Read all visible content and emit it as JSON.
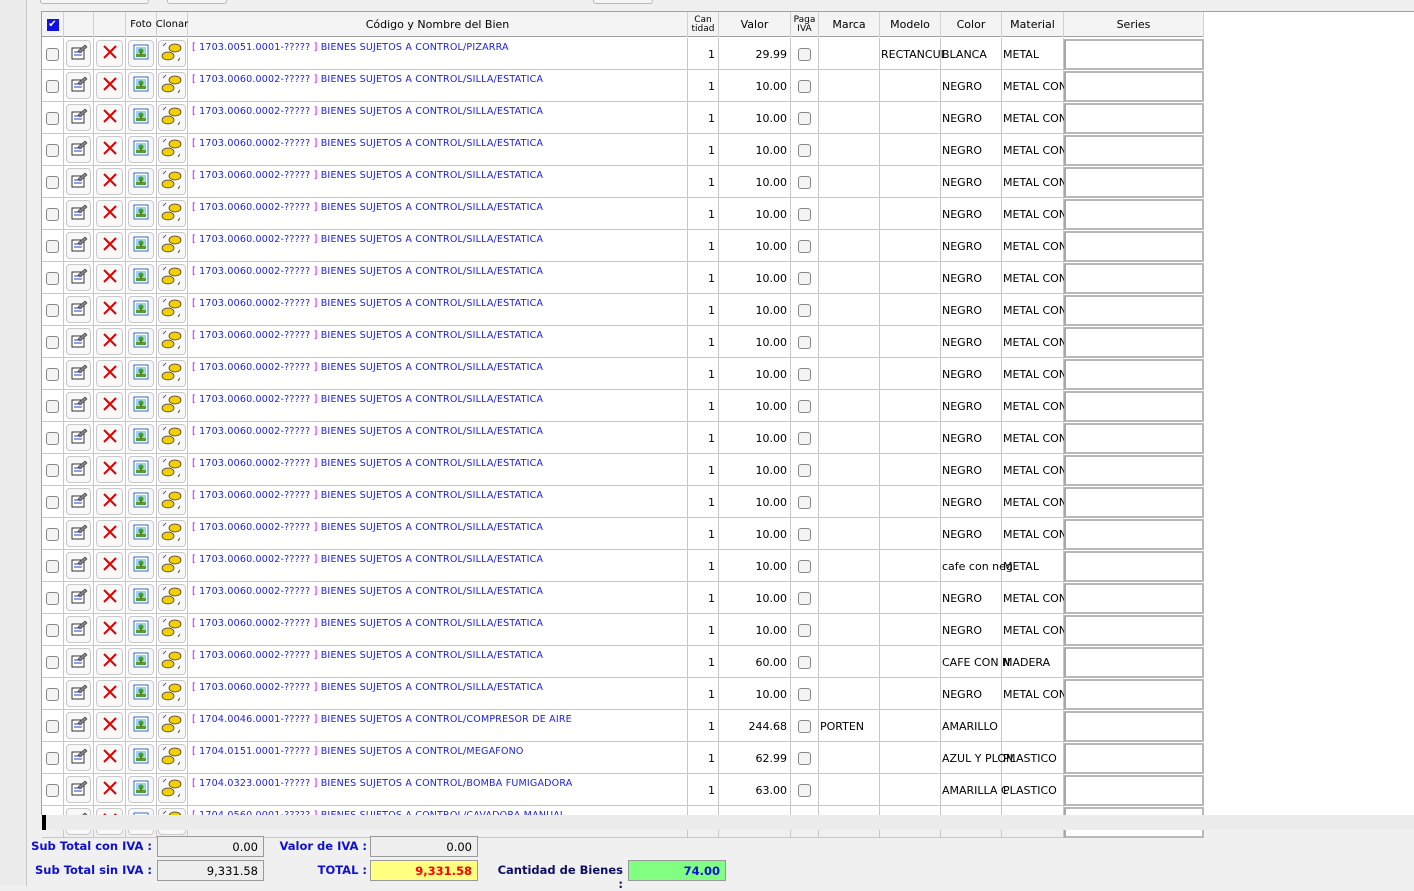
{
  "header": {
    "foto": "Foto",
    "clonar": "Clonar",
    "codigo": "Código y Nombre del Bien",
    "cantidad_1": "Can",
    "cantidad_2": "tidad",
    "valor": "Valor",
    "paga_1": "Paga",
    "paga_2": "IVA",
    "marca": "Marca",
    "modelo": "Modelo",
    "color": "Color",
    "material": "Material",
    "series": "Series"
  },
  "icons": {
    "select_all": "checkbox-checked",
    "edit": "edit-form-icon",
    "delete": "red-x-icon",
    "foto": "picture-icon",
    "clonar": "sheep-clone-icon"
  },
  "rows": [
    {
      "code": "1703.0051.0001-?????",
      "name": "BIENES SUJETOS A CONTROL/PIZARRA",
      "qty": "1",
      "value": "29.99",
      "marca": "",
      "modelo": "RECTANCUL",
      "color": "BLANCA",
      "material": "METAL"
    },
    {
      "code": "1703.0060.0002-?????",
      "name": "BIENES SUJETOS A CONTROL/SILLA/ESTATICA",
      "qty": "1",
      "value": "10.00",
      "marca": "",
      "modelo": "",
      "color": "NEGRO",
      "material": "METAL CON"
    },
    {
      "code": "1703.0060.0002-?????",
      "name": "BIENES SUJETOS A CONTROL/SILLA/ESTATICA",
      "qty": "1",
      "value": "10.00",
      "marca": "",
      "modelo": "",
      "color": "NEGRO",
      "material": "METAL CON"
    },
    {
      "code": "1703.0060.0002-?????",
      "name": "BIENES SUJETOS A CONTROL/SILLA/ESTATICA",
      "qty": "1",
      "value": "10.00",
      "marca": "",
      "modelo": "",
      "color": "NEGRO",
      "material": "METAL CON"
    },
    {
      "code": "1703.0060.0002-?????",
      "name": "BIENES SUJETOS A CONTROL/SILLA/ESTATICA",
      "qty": "1",
      "value": "10.00",
      "marca": "",
      "modelo": "",
      "color": "NEGRO",
      "material": "METAL CON"
    },
    {
      "code": "1703.0060.0002-?????",
      "name": "BIENES SUJETOS A CONTROL/SILLA/ESTATICA",
      "qty": "1",
      "value": "10.00",
      "marca": "",
      "modelo": "",
      "color": "NEGRO",
      "material": "METAL CON"
    },
    {
      "code": "1703.0060.0002-?????",
      "name": "BIENES SUJETOS A CONTROL/SILLA/ESTATICA",
      "qty": "1",
      "value": "10.00",
      "marca": "",
      "modelo": "",
      "color": "NEGRO",
      "material": "METAL CON"
    },
    {
      "code": "1703.0060.0002-?????",
      "name": "BIENES SUJETOS A CONTROL/SILLA/ESTATICA",
      "qty": "1",
      "value": "10.00",
      "marca": "",
      "modelo": "",
      "color": "NEGRO",
      "material": "METAL CON"
    },
    {
      "code": "1703.0060.0002-?????",
      "name": "BIENES SUJETOS A CONTROL/SILLA/ESTATICA",
      "qty": "1",
      "value": "10.00",
      "marca": "",
      "modelo": "",
      "color": "NEGRO",
      "material": "METAL CON"
    },
    {
      "code": "1703.0060.0002-?????",
      "name": "BIENES SUJETOS A CONTROL/SILLA/ESTATICA",
      "qty": "1",
      "value": "10.00",
      "marca": "",
      "modelo": "",
      "color": "NEGRO",
      "material": "METAL CON"
    },
    {
      "code": "1703.0060.0002-?????",
      "name": "BIENES SUJETOS A CONTROL/SILLA/ESTATICA",
      "qty": "1",
      "value": "10.00",
      "marca": "",
      "modelo": "",
      "color": "NEGRO",
      "material": "METAL CON"
    },
    {
      "code": "1703.0060.0002-?????",
      "name": "BIENES SUJETOS A CONTROL/SILLA/ESTATICA",
      "qty": "1",
      "value": "10.00",
      "marca": "",
      "modelo": "",
      "color": "NEGRO",
      "material": "METAL CON"
    },
    {
      "code": "1703.0060.0002-?????",
      "name": "BIENES SUJETOS A CONTROL/SILLA/ESTATICA",
      "qty": "1",
      "value": "10.00",
      "marca": "",
      "modelo": "",
      "color": "NEGRO",
      "material": "METAL CON"
    },
    {
      "code": "1703.0060.0002-?????",
      "name": "BIENES SUJETOS A CONTROL/SILLA/ESTATICA",
      "qty": "1",
      "value": "10.00",
      "marca": "",
      "modelo": "",
      "color": "NEGRO",
      "material": "METAL CON"
    },
    {
      "code": "1703.0060.0002-?????",
      "name": "BIENES SUJETOS A CONTROL/SILLA/ESTATICA",
      "qty": "1",
      "value": "10.00",
      "marca": "",
      "modelo": "",
      "color": "NEGRO",
      "material": "METAL CON"
    },
    {
      "code": "1703.0060.0002-?????",
      "name": "BIENES SUJETOS A CONTROL/SILLA/ESTATICA",
      "qty": "1",
      "value": "10.00",
      "marca": "",
      "modelo": "",
      "color": "NEGRO",
      "material": "METAL CON"
    },
    {
      "code": "1703.0060.0002-?????",
      "name": "BIENES SUJETOS A CONTROL/SILLA/ESTATICA",
      "qty": "1",
      "value": "10.00",
      "marca": "",
      "modelo": "",
      "color": "cafe con neg",
      "material": "METAL"
    },
    {
      "code": "1703.0060.0002-?????",
      "name": "BIENES SUJETOS A CONTROL/SILLA/ESTATICA",
      "qty": "1",
      "value": "10.00",
      "marca": "",
      "modelo": "",
      "color": "NEGRO",
      "material": "METAL CON"
    },
    {
      "code": "1703.0060.0002-?????",
      "name": "BIENES SUJETOS A CONTROL/SILLA/ESTATICA",
      "qty": "1",
      "value": "10.00",
      "marca": "",
      "modelo": "",
      "color": "NEGRO",
      "material": "METAL CON"
    },
    {
      "code": "1703.0060.0002-?????",
      "name": "BIENES SUJETOS A CONTROL/SILLA/ESTATICA",
      "qty": "1",
      "value": "60.00",
      "marca": "",
      "modelo": "",
      "color": "CAFE CON N",
      "material": "MADERA"
    },
    {
      "code": "1703.0060.0002-?????",
      "name": "BIENES SUJETOS A CONTROL/SILLA/ESTATICA",
      "qty": "1",
      "value": "10.00",
      "marca": "",
      "modelo": "",
      "color": "NEGRO",
      "material": "METAL CON"
    },
    {
      "code": "1704.0046.0001-?????",
      "name": "BIENES SUJETOS A CONTROL/COMPRESOR DE AIRE",
      "qty": "1",
      "value": "244.68",
      "marca": "PORTEN",
      "modelo": "",
      "color": "AMARILLO",
      "material": ""
    },
    {
      "code": "1704.0151.0001-?????",
      "name": "BIENES SUJETOS A CONTROL/MEGAFONO",
      "qty": "1",
      "value": "62.99",
      "marca": "",
      "modelo": "",
      "color": "AZUL Y PLOM",
      "material": "PLASTICO"
    },
    {
      "code": "1704.0323.0001-?????",
      "name": "BIENES SUJETOS A CONTROL/BOMBA FUMIGADORA",
      "qty": "1",
      "value": "63.00",
      "marca": "",
      "modelo": "",
      "color": "AMARILLA C",
      "material": "PLASTICO"
    },
    {
      "code": "1704.0560.0001-?????",
      "name": "BIENES SUJETOS A CONTROL/CAVADORA MANUAL",
      "qty": "",
      "value": "",
      "marca": "",
      "modelo": "",
      "color": "",
      "material": ""
    }
  ],
  "totals": {
    "sub_con_iva_label": "Sub Total con IVA :",
    "sub_con_iva": "0.00",
    "sub_sin_iva_label": "Sub Total sin IVA :",
    "sub_sin_iva": "9,331.58",
    "valor_iva_label": "Valor de IVA :",
    "valor_iva": "0.00",
    "total_label": "TOTAL :",
    "total": "9,331.58",
    "cantidad_label": "Cantidad de Bienes :",
    "cantidad": "74.00"
  },
  "colors": {
    "total_bg": "#ffff80",
    "total_text": "#ff0000",
    "cantidad_bg": "#80ff80",
    "label": "#1010d0",
    "link": "#2020e0"
  }
}
